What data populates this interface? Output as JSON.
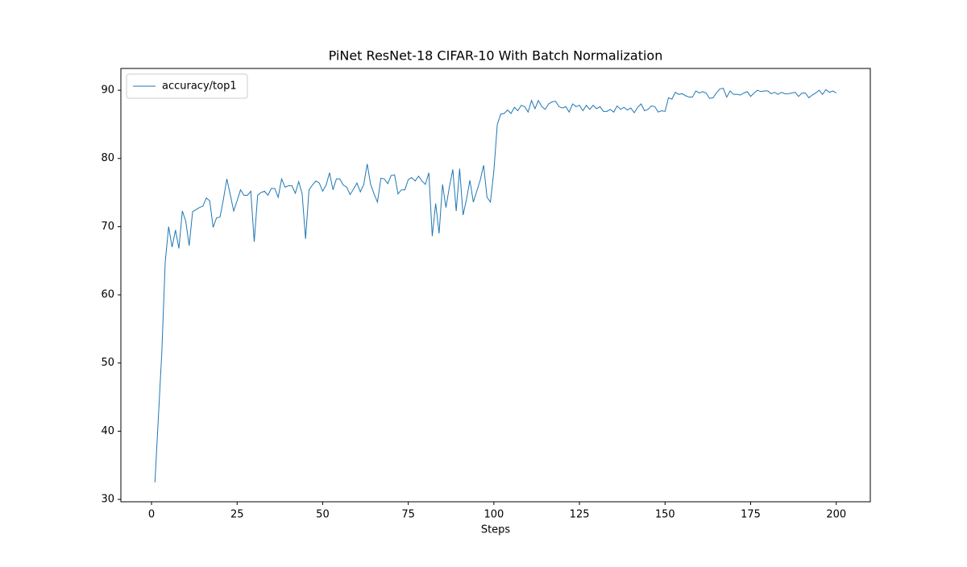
{
  "chart_data": {
    "type": "line",
    "title": "PiNet ResNet-18 CIFAR-10 With Batch Normalization",
    "xlabel": "Steps",
    "x": [
      1,
      2,
      3,
      4,
      5,
      6,
      7,
      8,
      9,
      10,
      11,
      12,
      13,
      14,
      15,
      16,
      17,
      18,
      19,
      20,
      21,
      22,
      23,
      24,
      25,
      26,
      27,
      28,
      29,
      30,
      31,
      32,
      33,
      34,
      35,
      36,
      37,
      38,
      39,
      40,
      41,
      42,
      43,
      44,
      45,
      46,
      47,
      48,
      49,
      50,
      51,
      52,
      53,
      54,
      55,
      56,
      57,
      58,
      59,
      60,
      61,
      62,
      63,
      64,
      65,
      66,
      67,
      68,
      69,
      70,
      71,
      72,
      73,
      74,
      75,
      76,
      77,
      78,
      79,
      80,
      81,
      82,
      83,
      84,
      85,
      86,
      87,
      88,
      89,
      90,
      91,
      92,
      93,
      94,
      95,
      96,
      97,
      98,
      99,
      100,
      101,
      102,
      103,
      104,
      105,
      106,
      107,
      108,
      109,
      110,
      111,
      112,
      113,
      114,
      115,
      116,
      117,
      118,
      119,
      120,
      121,
      122,
      123,
      124,
      125,
      126,
      127,
      128,
      129,
      130,
      131,
      132,
      133,
      134,
      135,
      136,
      137,
      138,
      139,
      140,
      141,
      142,
      143,
      144,
      145,
      146,
      147,
      148,
      149,
      150,
      151,
      152,
      153,
      154,
      155,
      156,
      157,
      158,
      159,
      160,
      161,
      162,
      163,
      164,
      165,
      166,
      167,
      168,
      169,
      170,
      171,
      172,
      173,
      174,
      175,
      176,
      177,
      178,
      179,
      180,
      181,
      182,
      183,
      184,
      185,
      186,
      187,
      188,
      189,
      190,
      191,
      192,
      193,
      194,
      195,
      196,
      197,
      198,
      199,
      200
    ],
    "series": [
      {
        "name": "accuracy/top1",
        "color": "#1f77b4",
        "values": [
          32.5,
          42,
          51.5,
          64.8,
          70,
          67,
          69.5,
          66.8,
          72.3,
          70.8,
          67.2,
          72.2,
          72.5,
          72.8,
          73,
          74.2,
          73.8,
          69.9,
          71.3,
          71.4,
          74,
          77,
          74.7,
          72.3,
          73.8,
          75.4,
          74.6,
          74.6,
          75.2,
          67.8,
          74.6,
          75,
          75.2,
          74.6,
          75.6,
          75.6,
          74.3,
          77,
          75.8,
          76,
          76,
          74.9,
          76.6,
          74.8,
          68.2,
          75.4,
          76.1,
          76.7,
          76.4,
          75.2,
          76.1,
          77.9,
          75.4,
          77,
          77,
          76.1,
          75.8,
          74.7,
          75.5,
          76.4,
          75.1,
          76.2,
          79.2,
          76.2,
          74.8,
          73.6,
          77.1,
          77,
          76.3,
          77.5,
          77.6,
          74.8,
          75.4,
          75.4,
          76.9,
          77.2,
          76.7,
          77.4,
          76.7,
          76.2,
          77.9,
          68.6,
          73.4,
          69,
          76.2,
          72.8,
          75.8,
          78.4,
          72.3,
          78.5,
          71.7,
          74,
          76.8,
          73.6,
          75.2,
          76.8,
          79,
          74.3,
          73.6,
          78.2,
          85,
          86.5,
          86.6,
          87.1,
          86.6,
          87.5,
          87,
          87.8,
          87.6,
          86.8,
          88.5,
          87.3,
          88.5,
          87.6,
          87.2,
          88,
          88.3,
          88.4,
          87.6,
          87.4,
          87.6,
          86.8,
          88,
          87.6,
          87.8,
          87,
          87.8,
          87.2,
          87.8,
          87.3,
          87.6,
          86.9,
          86.9,
          87.2,
          86.8,
          87.7,
          87.2,
          87.5,
          87.1,
          87.4,
          86.7,
          87.5,
          88,
          87,
          87.2,
          87.7,
          87.6,
          86.8,
          87,
          86.9,
          88.9,
          88.7,
          89.7,
          89.4,
          89.5,
          89.2,
          89,
          89,
          89.9,
          89.6,
          89.8,
          89.6,
          88.8,
          88.9,
          89.6,
          90.2,
          90.3,
          89,
          89.9,
          89.4,
          89.4,
          89.3,
          89.6,
          89.8,
          89.1,
          89.6,
          90,
          89.8,
          89.9,
          89.9,
          89.5,
          89.7,
          89.4,
          89.7,
          89.5,
          89.5,
          89.6,
          89.7,
          89.1,
          89.6,
          89.6,
          88.9,
          89.3,
          89.6,
          90,
          89.4,
          90.1,
          89.7,
          89.9,
          89.6
        ]
      }
    ],
    "xlim": [
      -8.95,
      209.95
    ],
    "ylim": [
      29.65,
      93.2
    ],
    "xticks": [
      0,
      25,
      50,
      75,
      100,
      125,
      150,
      175,
      200
    ],
    "yticks": [
      30,
      40,
      50,
      60,
      70,
      80,
      90
    ],
    "legend": "upper left"
  }
}
